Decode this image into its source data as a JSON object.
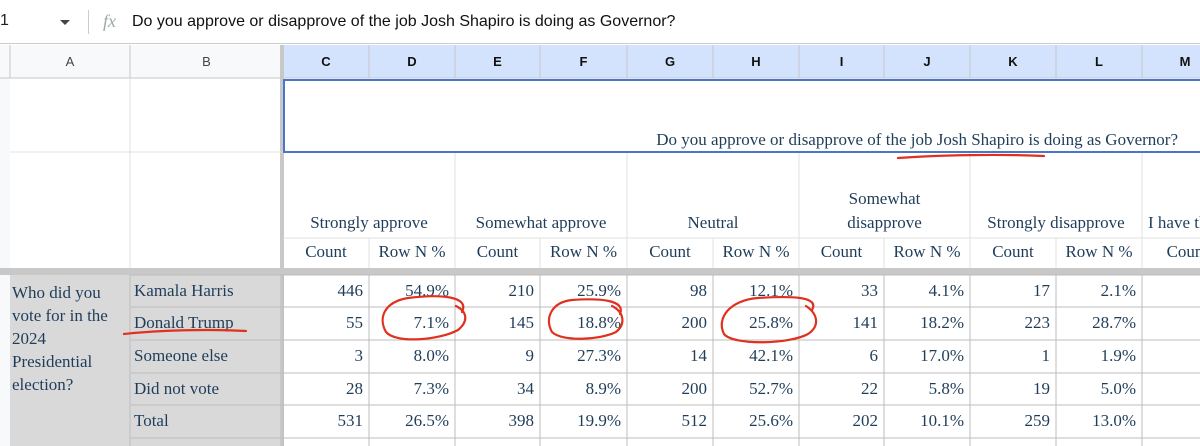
{
  "formula_bar": {
    "cell": "1",
    "fx": "fx",
    "formula": "Do you approve or disapprove of the job Josh Shapiro is doing as Governor?"
  },
  "column_headers": [
    "A",
    "B",
    "C",
    "D",
    "E",
    "F",
    "G",
    "H",
    "I",
    "J",
    "K",
    "L",
    "M"
  ],
  "table": {
    "title": "Do you approve or disapprove of the job Josh Shapiro is doing as Governor?",
    "groups": [
      "Strongly approve",
      "Somewhat approve",
      "Neutral",
      "Somewhat disapprove",
      "Strongly disapprove",
      "I have th"
    ],
    "subheaders": [
      "Count",
      "Row N %",
      "Count",
      "Row N %",
      "Count",
      "Row N %",
      "Count",
      "Row N %",
      "Count",
      "Row N %",
      "Coun"
    ],
    "row_question": "Who did you vote for in the 2024 Presidential election?",
    "rows": [
      {
        "label": "Kamala Harris",
        "cells": [
          "446",
          "54.9%",
          "210",
          "25.9%",
          "98",
          "12.1%",
          "33",
          "4.1%",
          "17",
          "2.1%"
        ]
      },
      {
        "label": "Donald Trump",
        "cells": [
          "55",
          "7.1%",
          "145",
          "18.8%",
          "200",
          "25.8%",
          "141",
          "18.2%",
          "223",
          "28.7%"
        ]
      },
      {
        "label": "Someone else",
        "cells": [
          "3",
          "8.0%",
          "9",
          "27.3%",
          "14",
          "42.1%",
          "6",
          "17.0%",
          "1",
          "1.9%"
        ]
      },
      {
        "label": "Did not vote",
        "cells": [
          "28",
          "7.3%",
          "34",
          "8.9%",
          "200",
          "52.7%",
          "22",
          "5.8%",
          "19",
          "5.0%"
        ]
      },
      {
        "label": "Total",
        "cells": [
          "531",
          "26.5%",
          "398",
          "19.9%",
          "512",
          "25.6%",
          "202",
          "10.1%",
          "259",
          "13.0%"
        ]
      }
    ]
  }
}
